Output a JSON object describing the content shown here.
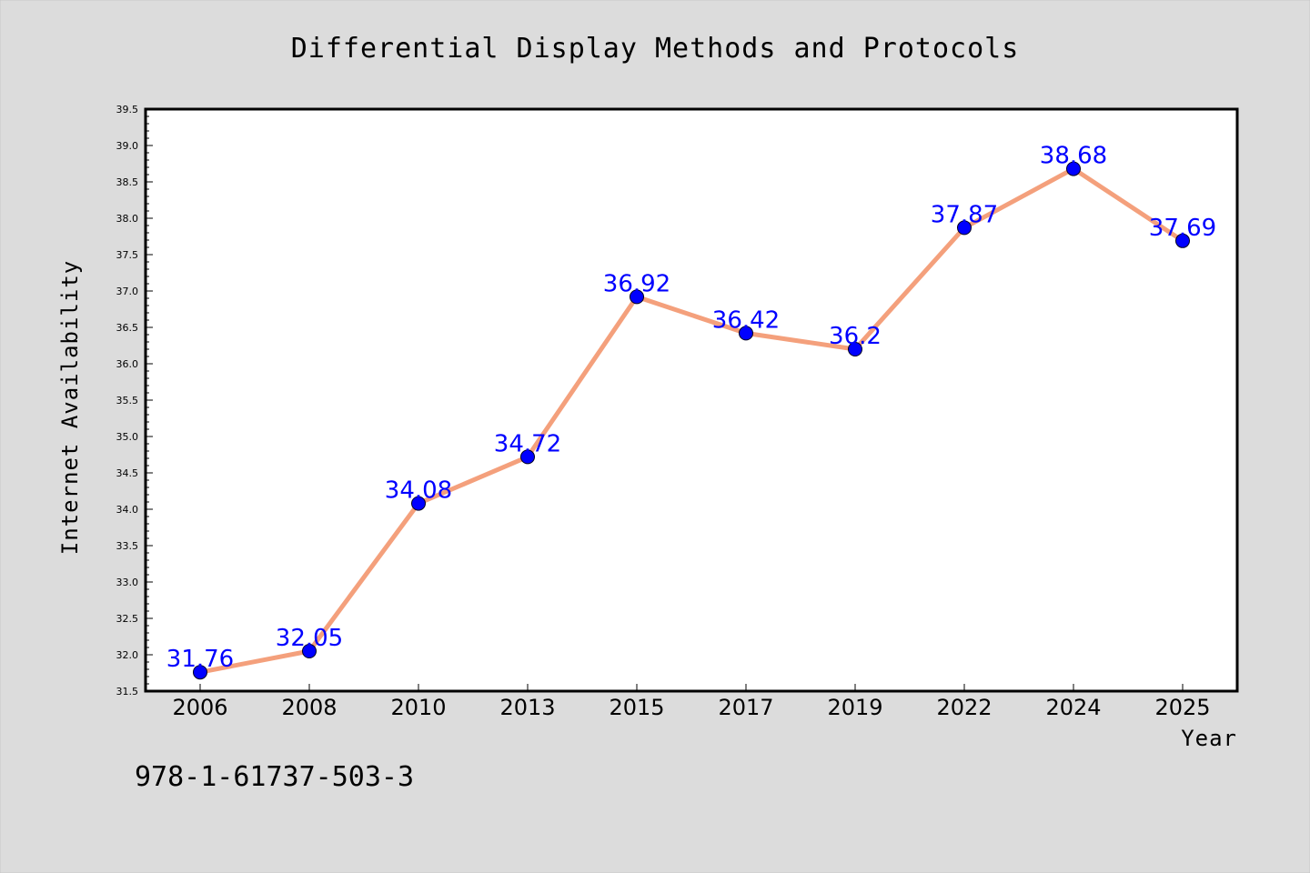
{
  "chart_data": {
    "type": "line",
    "title": "Differential Display Methods and Protocols",
    "xlabel": "Year",
    "ylabel": "Internet Availability",
    "categories": [
      "2006",
      "2008",
      "2010",
      "2013",
      "2015",
      "2017",
      "2019",
      "2022",
      "2024",
      "2025"
    ],
    "series": [
      {
        "values": [
          31.76,
          32.05,
          34.08,
          34.72,
          36.92,
          36.42,
          36.2,
          37.87,
          38.68,
          37.69
        ],
        "labels": [
          "31.76",
          "32.05",
          "34.08",
          "34.72",
          "36.92",
          "36.42",
          "36.2",
          "37.87",
          "38.68",
          "37.69"
        ],
        "line_color": "#f4a07c",
        "marker_color": "#0000ff",
        "label_color": "#0000ff"
      }
    ],
    "ylim": [
      31.5,
      39.5
    ],
    "yticks": [
      "31.5",
      "32.0",
      "32.5",
      "33.0",
      "33.5",
      "34.0",
      "34.5",
      "35.0",
      "35.5",
      "36.0",
      "36.5",
      "37.0",
      "37.5",
      "38.0",
      "38.5",
      "39.0",
      "39.5"
    ],
    "grid": false,
    "legend": "none",
    "background_color": "#dcdcdc",
    "plot_background_color": "#ffffff"
  },
  "footer": {
    "isbn": "978-1-61737-503-3"
  }
}
